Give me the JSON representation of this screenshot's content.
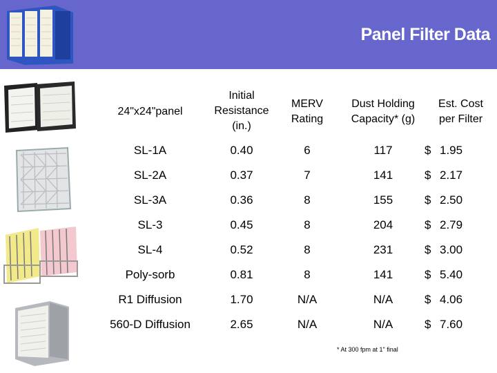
{
  "title": "Panel Filter Data",
  "header": {
    "model": "24\"x24\"panel",
    "resistance": [
      "Initial",
      "Resistance",
      "(in.)"
    ],
    "merv": [
      "MERV",
      "Rating"
    ],
    "dust": [
      "Dust Holding",
      "Capacity* (g)"
    ],
    "cost": [
      "Est. Cost",
      "per Filter"
    ]
  },
  "rows": [
    {
      "model": "SL-1A",
      "resistance": "0.40",
      "merv": "6",
      "dust": "117",
      "currency": "$",
      "cost": "1.95"
    },
    {
      "model": "SL-2A",
      "resistance": "0.37",
      "merv": "7",
      "dust": "141",
      "currency": "$",
      "cost": "2.17"
    },
    {
      "model": "SL-3A",
      "resistance": "0.36",
      "merv": "8",
      "dust": "155",
      "currency": "$",
      "cost": "2.50"
    },
    {
      "model": "SL-3",
      "resistance": "0.45",
      "merv": "8",
      "dust": "204",
      "currency": "$",
      "cost": "2.79"
    },
    {
      "model": "SL-4",
      "resistance": "0.52",
      "merv": "8",
      "dust": "231",
      "currency": "$",
      "cost": "3.00"
    },
    {
      "model": "Poly-sorb",
      "resistance": "0.81",
      "merv": "8",
      "dust": "141",
      "currency": "$",
      "cost": "5.40"
    },
    {
      "model": "R1 Diffusion",
      "resistance": "1.70",
      "merv": "N/A",
      "dust": "N/A",
      "currency": "$",
      "cost": "4.06"
    },
    {
      "model": "560-D Diffusion",
      "resistance": "2.65",
      "merv": "N/A",
      "dust": "N/A",
      "currency": "$",
      "cost": "7.60"
    }
  ],
  "footnote": "* At 300 fpm at 1\" final",
  "colors": {
    "band": "#6666cc",
    "title_text": "#ffffff"
  },
  "images": [
    "v-bank-filter-image",
    "panel-filters-image",
    "pleated-filter-image",
    "bag-filters-image",
    "box-filter-image"
  ]
}
